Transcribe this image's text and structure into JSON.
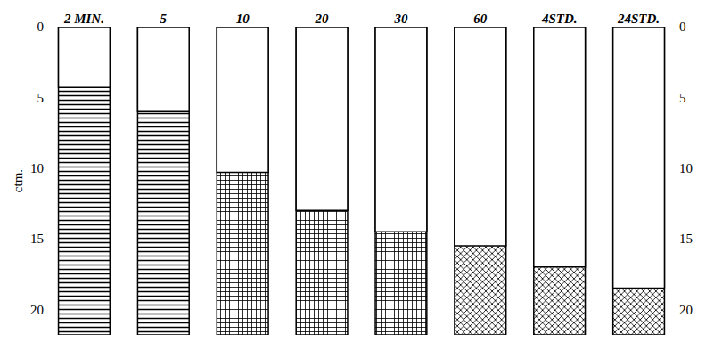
{
  "chart_data": {
    "type": "bar",
    "categories": [
      "2 MIN.",
      "5",
      "10",
      "20",
      "30",
      "60",
      "4STD.",
      "24STD."
    ],
    "values": [
      4.3,
      6,
      10.3,
      13,
      14.5,
      15.5,
      17,
      18.5
    ],
    "y_title": "ctm.",
    "ylim": [
      21.8,
      0
    ],
    "yticks": [
      0,
      5,
      10,
      15,
      20
    ],
    "color": "#000000",
    "grid": false
  }
}
